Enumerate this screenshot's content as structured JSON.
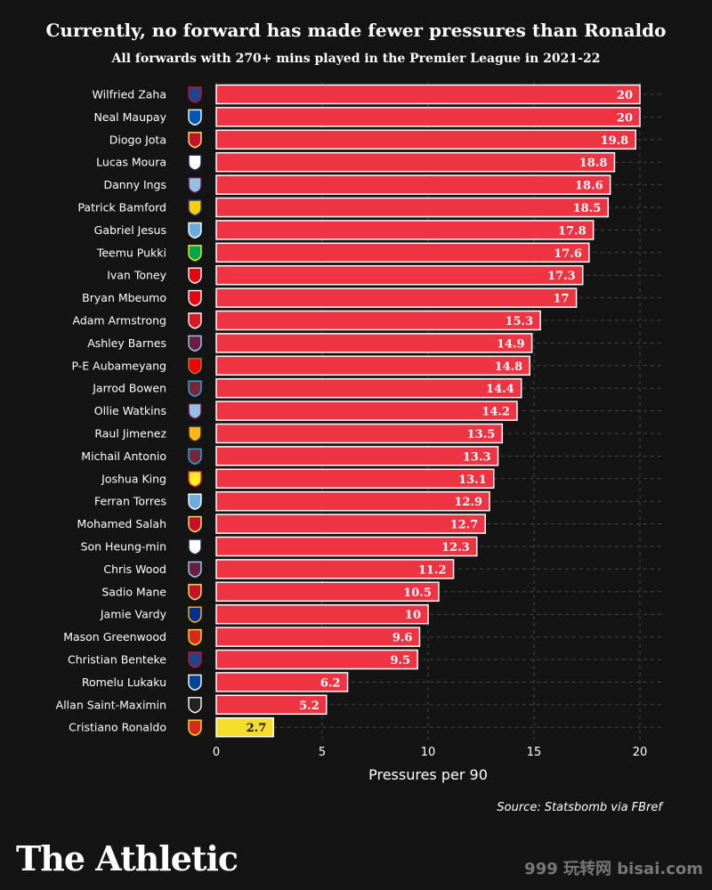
{
  "title": "Currently, no forward has made fewer pressures than Ronaldo",
  "subtitle": "All forwards with 270+ mins played in the Premier League in 2021-22",
  "source": "Source: Statsbomb via FBref",
  "brand": "The Athletic",
  "watermark": "999 玩转网 bisai.com",
  "colors": {
    "bar": "#ee3342",
    "highlight": "#f6dd2c",
    "background": "#141414",
    "text": "#ffffff",
    "grid": "#444444"
  },
  "chart_data": {
    "type": "bar",
    "orientation": "horizontal",
    "title": "Currently, no forward has made fewer pressures than Ronaldo",
    "subtitle": "All forwards with 270+ mins played in the Premier League in 2021-22",
    "xlabel": "Pressures per 90",
    "ylabel": "",
    "xlim": [
      0,
      20
    ],
    "xticks": [
      0,
      5,
      10,
      15,
      20
    ],
    "grid": true,
    "categories": [
      "Wilfried Zaha",
      "Neal Maupay",
      "Diogo Jota",
      "Lucas Moura",
      "Danny Ings",
      "Patrick Bamford",
      "Gabriel Jesus",
      "Teemu Pukki",
      "Ivan Toney",
      "Bryan Mbeumo",
      "Adam Armstrong",
      "Ashley Barnes",
      "P-E Aubameyang",
      "Jarrod Bowen",
      "Ollie Watkins",
      "Raul Jimenez",
      "Michail Antonio",
      "Joshua King",
      "Ferran Torres",
      "Mohamed Salah",
      "Son Heung-min",
      "Chris Wood",
      "Sadio Mane",
      "Jamie Vardy",
      "Mason Greenwood",
      "Christian Benteke",
      "Romelu Lukaku",
      "Allan Saint-Maximin",
      "Cristiano Ronaldo"
    ],
    "values": [
      20,
      20,
      19.8,
      18.8,
      18.6,
      18.5,
      17.8,
      17.6,
      17.3,
      17,
      15.3,
      14.9,
      14.8,
      14.4,
      14.2,
      13.5,
      13.3,
      13.1,
      12.9,
      12.7,
      12.3,
      11.2,
      10.5,
      10,
      9.6,
      9.5,
      6.2,
      5.2,
      2.7
    ],
    "highlight": "Cristiano Ronaldo",
    "clubs": [
      "crystal-palace",
      "brighton",
      "liverpool",
      "tottenham",
      "aston-villa",
      "leeds",
      "man-city",
      "norwich",
      "brentford",
      "brentford",
      "southampton",
      "burnley",
      "arsenal",
      "west-ham",
      "aston-villa",
      "wolves",
      "west-ham",
      "watford",
      "man-city",
      "liverpool",
      "tottenham",
      "burnley",
      "liverpool",
      "leicester",
      "man-united",
      "crystal-palace",
      "chelsea",
      "newcastle",
      "man-united"
    ]
  },
  "club_colors": {
    "crystal-palace": [
      "#1b458f",
      "#c4122e"
    ],
    "brighton": [
      "#0057b8",
      "#ffffff"
    ],
    "liverpool": [
      "#c8102e",
      "#f6eb61"
    ],
    "tottenham": [
      "#ffffff",
      "#132257"
    ],
    "aston-villa": [
      "#95bfe5",
      "#670e36"
    ],
    "leeds": [
      "#ffcd00",
      "#1d428a"
    ],
    "man-city": [
      "#6cabdd",
      "#ffffff"
    ],
    "norwich": [
      "#00a650",
      "#fff200"
    ],
    "brentford": [
      "#e30613",
      "#ffffff"
    ],
    "southampton": [
      "#d71920",
      "#ffffff"
    ],
    "burnley": [
      "#6c1d45",
      "#99d6ea"
    ],
    "arsenal": [
      "#ef0107",
      "#9c824a"
    ],
    "west-ham": [
      "#7a263a",
      "#1bb1e7"
    ],
    "wolves": [
      "#fdb913",
      "#231f20"
    ],
    "watford": [
      "#fbee23",
      "#ed2127"
    ],
    "leicester": [
      "#003090",
      "#fdbe11"
    ],
    "man-united": [
      "#da291c",
      "#fbe122"
    ],
    "chelsea": [
      "#034694",
      "#ffffff"
    ],
    "newcastle": [
      "#241f20",
      "#ffffff"
    ]
  }
}
